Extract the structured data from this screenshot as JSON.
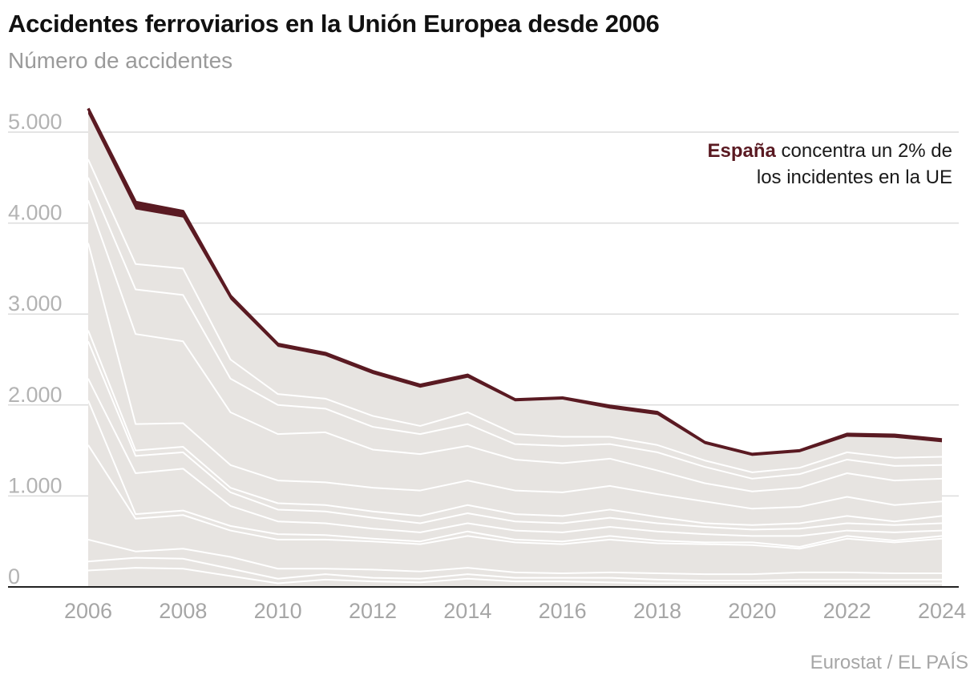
{
  "title": "Accidentes ferroviarios en la Unión Europea desde 2006",
  "subtitle": "Número de accidentes",
  "annotation": {
    "highlight": "España",
    "text": " concentra un 2% de los incidentes en la UE"
  },
  "source": "Eurostat / EL PAÍS",
  "colors": {
    "area_fill": "#e7e4e1",
    "stream_line": "#ffffff",
    "spain": "#5a1a22",
    "grid": "#dcdcdc",
    "axis": "#222222"
  },
  "chart_data": {
    "type": "area",
    "stacked": true,
    "ylim": [
      0,
      5300
    ],
    "yticks": [
      0,
      1000,
      2000,
      3000,
      4000,
      5000
    ],
    "ytick_labels": [
      "0",
      "1.000",
      "2.000",
      "3.000",
      "4.000",
      "5.000"
    ],
    "xticks": [
      2006,
      2008,
      2010,
      2012,
      2014,
      2016,
      2018,
      2020,
      2022,
      2024
    ],
    "grid": true,
    "x": [
      2006,
      2007,
      2008,
      2009,
      2010,
      2011,
      2012,
      2013,
      2014,
      2015,
      2016,
      2017,
      2018,
      2019,
      2020,
      2021,
      2022,
      2023,
      2024
    ],
    "boundaries": [
      [
        180,
        210,
        200,
        120,
        40,
        80,
        60,
        50,
        90,
        60,
        60,
        50,
        40,
        40,
        40,
        40,
        40,
        40,
        40
      ],
      [
        280,
        320,
        310,
        200,
        90,
        140,
        100,
        90,
        140,
        100,
        100,
        100,
        80,
        70,
        70,
        80,
        80,
        80,
        80
      ],
      [
        520,
        390,
        420,
        330,
        200,
        200,
        190,
        170,
        210,
        160,
        150,
        160,
        150,
        140,
        140,
        160,
        160,
        150,
        150
      ],
      [
        1560,
        750,
        790,
        620,
        520,
        520,
        500,
        470,
        560,
        490,
        470,
        520,
        480,
        470,
        460,
        420,
        530,
        490,
        530
      ],
      [
        2050,
        800,
        840,
        670,
        580,
        570,
        530,
        500,
        610,
        520,
        500,
        560,
        510,
        490,
        490,
        440,
        560,
        510,
        560
      ],
      [
        2290,
        1250,
        1300,
        890,
        720,
        700,
        640,
        600,
        700,
        620,
        600,
        660,
        610,
        580,
        560,
        560,
        620,
        600,
        620
      ],
      [
        2700,
        1440,
        1480,
        1040,
        850,
        830,
        760,
        700,
        810,
        720,
        700,
        760,
        700,
        660,
        630,
        640,
        700,
        680,
        700
      ],
      [
        2820,
        1500,
        1540,
        1090,
        920,
        900,
        830,
        780,
        900,
        800,
        780,
        850,
        770,
        700,
        680,
        700,
        780,
        720,
        780
      ],
      [
        3780,
        1790,
        1800,
        1340,
        1170,
        1150,
        1090,
        1060,
        1170,
        1060,
        1040,
        1110,
        1020,
        940,
        860,
        880,
        990,
        900,
        940
      ],
      [
        4250,
        2780,
        2700,
        1920,
        1680,
        1700,
        1510,
        1460,
        1550,
        1400,
        1360,
        1410,
        1280,
        1140,
        1050,
        1090,
        1250,
        1170,
        1190
      ],
      [
        4500,
        3270,
        3210,
        2290,
        2000,
        1960,
        1760,
        1680,
        1790,
        1570,
        1550,
        1570,
        1480,
        1320,
        1190,
        1240,
        1400,
        1330,
        1340
      ],
      [
        4700,
        3550,
        3500,
        2500,
        2120,
        2070,
        1880,
        1770,
        1920,
        1680,
        1650,
        1650,
        1560,
        1390,
        1260,
        1310,
        1480,
        1420,
        1430
      ],
      [
        5200,
        4150,
        4060,
        3160,
        2640,
        2540,
        2340,
        2190,
        2300,
        2040,
        2060,
        1960,
        1890,
        1570,
        1440,
        1480,
        1650,
        1640,
        1590
      ]
    ],
    "series": [
      {
        "name": "España",
        "values": [
          60,
          80,
          70,
          40,
          30,
          30,
          30,
          30,
          30,
          20,
          20,
          30,
          30,
          20,
          20,
          20,
          30,
          30,
          30
        ]
      }
    ]
  }
}
